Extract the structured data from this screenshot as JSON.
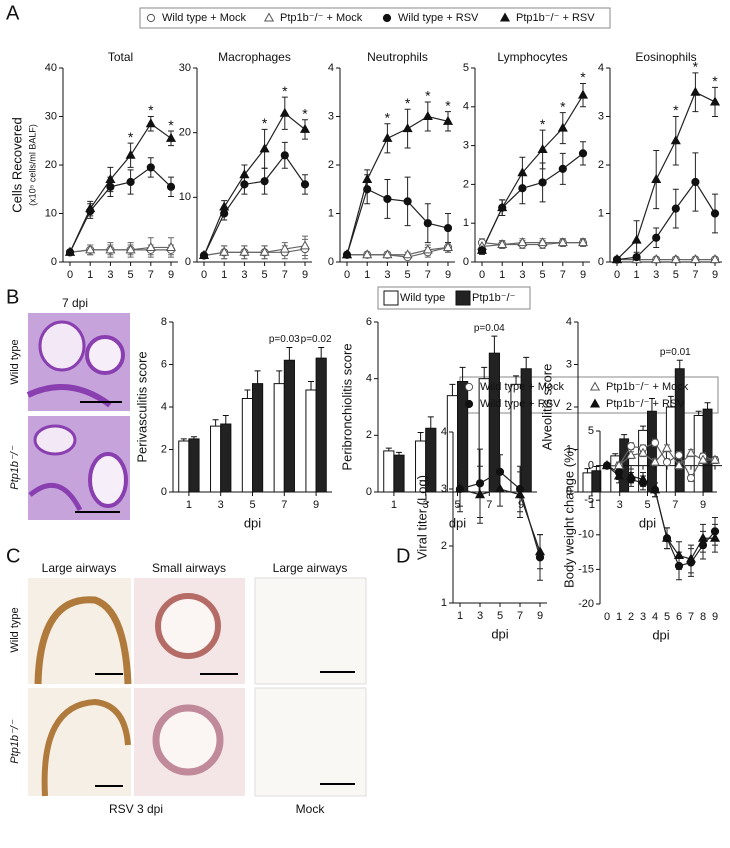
{
  "panel_labels": [
    "A",
    "B",
    "C",
    "D"
  ],
  "panel_a_xlabel": "dpi",
  "panel_b": {
    "image_title": "7 dpi",
    "rows": [
      "Wild type",
      "Ptp1b⁻/⁻"
    ]
  },
  "panel_c": {
    "columns": [
      "Large airways",
      "Small airways",
      "Large airways"
    ],
    "rows": [
      "Wild type",
      "Ptp1b⁻/⁻"
    ],
    "groups": [
      "RSV 3 dpi",
      "Mock"
    ]
  },
  "chart_data": [
    {
      "type": "line",
      "title": "Total",
      "ylabel": "Cells Recovered",
      "ylabel_sub": "(x10⁵ cells/ml BALF)",
      "categories": [
        "0",
        "1",
        "3",
        "5",
        "7",
        "9"
      ],
      "ylim": [
        0,
        40
      ],
      "yticks": [
        0,
        10,
        20,
        30,
        40
      ],
      "series": [
        {
          "name": "Wild type + Mock",
          "marker": "circle",
          "filled": false,
          "color": "#666",
          "values": [
            2,
            2.5,
            2.5,
            2.5,
            2.5,
            2.5
          ],
          "errors": [
            0.5,
            1,
            1,
            1,
            1,
            1
          ]
        },
        {
          "name": "Ptp1b⁻/⁻ + Mock",
          "marker": "triangle",
          "filled": false,
          "color": "#666",
          "values": [
            2,
            2.5,
            2.5,
            2.5,
            3,
            3
          ],
          "errors": [
            0.5,
            1,
            1.5,
            1.5,
            2,
            2
          ]
        },
        {
          "name": "Wild type + RSV",
          "marker": "circle",
          "filled": true,
          "color": "#222",
          "values": [
            2,
            10.5,
            15.5,
            16.5,
            19.5,
            15.5
          ],
          "errors": [
            0.5,
            1.5,
            2,
            2.5,
            2,
            2
          ]
        },
        {
          "name": "Ptp1b⁻/⁻ + RSV",
          "marker": "triangle",
          "filled": true,
          "color": "#222",
          "values": [
            2,
            11,
            17,
            22,
            28.5,
            25.5
          ],
          "errors": [
            0.5,
            1.5,
            2.5,
            2.5,
            1.5,
            1.5
          ]
        }
      ],
      "annotations": [
        {
          "category": "5",
          "text": "*"
        },
        {
          "category": "7",
          "text": "*"
        },
        {
          "category": "9",
          "text": "*"
        }
      ]
    },
    {
      "type": "line",
      "title": "Macrophages",
      "categories": [
        "0",
        "1",
        "3",
        "5",
        "7",
        "9"
      ],
      "ylim": [
        0,
        30
      ],
      "yticks": [
        0,
        10,
        20,
        30
      ],
      "series": [
        {
          "name": "Wild type + Mock",
          "marker": "circle",
          "filled": false,
          "color": "#666",
          "values": [
            1,
            1.5,
            1.5,
            1.5,
            1.5,
            2
          ],
          "errors": [
            0.3,
            1,
            1,
            1,
            1,
            1.5
          ]
        },
        {
          "name": "Ptp1b⁻/⁻ + Mock",
          "marker": "triangle",
          "filled": false,
          "color": "#666",
          "values": [
            1,
            1.5,
            1.5,
            1.5,
            2,
            2.5
          ],
          "errors": [
            0.3,
            1,
            1,
            1,
            1,
            1.5
          ]
        },
        {
          "name": "Wild type + RSV",
          "marker": "circle",
          "filled": true,
          "color": "#222",
          "values": [
            1,
            7.5,
            12,
            12.5,
            16.5,
            12
          ],
          "errors": [
            0.3,
            1,
            1.5,
            2,
            2,
            1.5
          ]
        },
        {
          "name": "Ptp1b⁻/⁻ + RSV",
          "marker": "triangle",
          "filled": true,
          "color": "#222",
          "values": [
            1,
            8.5,
            13.5,
            17.5,
            23,
            20.5
          ],
          "errors": [
            0.3,
            1,
            1.5,
            3,
            2.5,
            1.5
          ]
        }
      ],
      "annotations": [
        {
          "category": "5",
          "text": "*"
        },
        {
          "category": "7",
          "text": "*"
        },
        {
          "category": "9",
          "text": "*"
        }
      ]
    },
    {
      "type": "line",
      "title": "Neutrophils",
      "categories": [
        "0",
        "1",
        "3",
        "5",
        "7",
        "9"
      ],
      "ylim": [
        0,
        4
      ],
      "yticks": [
        0,
        1,
        2,
        3,
        4
      ],
      "series": [
        {
          "name": "Wild type + Mock",
          "marker": "circle",
          "filled": false,
          "color": "#666",
          "values": [
            0.15,
            0.15,
            0.15,
            0.1,
            0.2,
            0.3
          ],
          "errors": [
            0.05,
            0.05,
            0.05,
            0.05,
            0.1,
            0.1
          ]
        },
        {
          "name": "Ptp1b⁻/⁻ + Mock",
          "marker": "triangle",
          "filled": false,
          "color": "#666",
          "values": [
            0.15,
            0.15,
            0.15,
            0.15,
            0.25,
            0.3
          ],
          "errors": [
            0.05,
            0.05,
            0.05,
            0.05,
            0.1,
            0.1
          ]
        },
        {
          "name": "Wild type + RSV",
          "marker": "circle",
          "filled": true,
          "color": "#222",
          "values": [
            0.15,
            1.5,
            1.3,
            1.25,
            0.8,
            0.7
          ],
          "errors": [
            0.05,
            0.3,
            0.4,
            0.5,
            0.4,
            0.3
          ]
        },
        {
          "name": "Ptp1b⁻/⁻ + RSV",
          "marker": "triangle",
          "filled": true,
          "color": "#222",
          "values": [
            0.15,
            1.7,
            2.55,
            2.75,
            3.0,
            2.9
          ],
          "errors": [
            0.05,
            0.2,
            0.3,
            0.4,
            0.3,
            0.2
          ]
        }
      ],
      "annotations": [
        {
          "category": "3",
          "text": "*"
        },
        {
          "category": "5",
          "text": "*"
        },
        {
          "category": "7",
          "text": "*"
        },
        {
          "category": "9",
          "text": "*"
        }
      ]
    },
    {
      "type": "line",
      "title": "Lymphocytes",
      "categories": [
        "0",
        "1",
        "3",
        "5",
        "7",
        "9"
      ],
      "ylim": [
        0,
        5
      ],
      "yticks": [
        0,
        1,
        2,
        3,
        4,
        5
      ],
      "series": [
        {
          "name": "Wild type + Mock",
          "marker": "circle",
          "filled": false,
          "color": "#666",
          "values": [
            0.5,
            0.45,
            0.45,
            0.45,
            0.5,
            0.5
          ],
          "errors": [
            0.1,
            0.1,
            0.1,
            0.1,
            0.1,
            0.1
          ]
        },
        {
          "name": "Ptp1b⁻/⁻ + Mock",
          "marker": "triangle",
          "filled": false,
          "color": "#666",
          "values": [
            0.4,
            0.45,
            0.5,
            0.5,
            0.5,
            0.5
          ],
          "errors": [
            0.1,
            0.1,
            0.1,
            0.1,
            0.1,
            0.1
          ]
        },
        {
          "name": "Wild type + RSV",
          "marker": "circle",
          "filled": true,
          "color": "#222",
          "values": [
            0.3,
            1.4,
            1.9,
            2.05,
            2.4,
            2.8
          ],
          "errors": [
            0.1,
            0.2,
            0.4,
            0.5,
            0.4,
            0.3
          ]
        },
        {
          "name": "Ptp1b⁻/⁻ + RSV",
          "marker": "triangle",
          "filled": true,
          "color": "#222",
          "values": [
            0.3,
            1.4,
            2.3,
            2.9,
            3.45,
            4.3
          ],
          "errors": [
            0.1,
            0.2,
            0.4,
            0.5,
            0.4,
            0.3
          ]
        }
      ],
      "annotations": [
        {
          "category": "5",
          "text": "*"
        },
        {
          "category": "7",
          "text": "*"
        },
        {
          "category": "9",
          "text": "*"
        }
      ]
    },
    {
      "type": "line",
      "title": "Eosinophils",
      "categories": [
        "0",
        "1",
        "3",
        "5",
        "7",
        "9"
      ],
      "ylim": [
        0,
        4
      ],
      "yticks": [
        0,
        1,
        2,
        3,
        4
      ],
      "series": [
        {
          "name": "Wild type + Mock",
          "marker": "circle",
          "filled": false,
          "color": "#666",
          "values": [
            0.05,
            0.05,
            0.05,
            0.05,
            0.05,
            0.05
          ],
          "errors": [
            0.05,
            0.05,
            0.05,
            0.05,
            0.05,
            0.05
          ]
        },
        {
          "name": "Ptp1b⁻/⁻ + Mock",
          "marker": "triangle",
          "filled": false,
          "color": "#666",
          "values": [
            0.05,
            0.05,
            0.05,
            0.05,
            0.05,
            0.05
          ],
          "errors": [
            0.05,
            0.05,
            0.05,
            0.05,
            0.05,
            0.05
          ]
        },
        {
          "name": "Wild type + RSV",
          "marker": "circle",
          "filled": true,
          "color": "#222",
          "values": [
            0.05,
            0.1,
            0.5,
            1.1,
            1.65,
            1.0
          ],
          "errors": [
            0.05,
            0.1,
            0.2,
            0.4,
            0.6,
            0.4
          ]
        },
        {
          "name": "Ptp1b⁻/⁻ + RSV",
          "marker": "triangle",
          "filled": true,
          "color": "#222",
          "values": [
            0.05,
            0.45,
            1.7,
            2.5,
            3.5,
            3.3
          ],
          "errors": [
            0.05,
            0.4,
            0.6,
            0.5,
            0.4,
            0.3
          ]
        }
      ],
      "annotations": [
        {
          "category": "5",
          "text": "*"
        },
        {
          "category": "7",
          "text": "*"
        },
        {
          "category": "9",
          "text": "*"
        }
      ]
    },
    {
      "type": "bar",
      "ylabel": "Perivasculitis score",
      "xlabel": "dpi",
      "categories": [
        "1",
        "3",
        "5",
        "7",
        "9"
      ],
      "ylim": [
        0,
        8
      ],
      "yticks": [
        0,
        2,
        4,
        6,
        8
      ],
      "series": [
        {
          "name": "Wild type",
          "color": "#ffffff",
          "values": [
            2.4,
            3.1,
            4.4,
            5.1,
            4.8
          ],
          "errors": [
            0.1,
            0.3,
            0.4,
            0.6,
            0.4
          ]
        },
        {
          "name": "Ptp1b⁻/⁻",
          "color": "#222222",
          "values": [
            2.5,
            3.2,
            5.1,
            6.2,
            6.3
          ],
          "errors": [
            0.1,
            0.4,
            0.6,
            0.6,
            0.5
          ]
        }
      ],
      "annotations": [
        {
          "category": "7",
          "text": "p=0.03"
        },
        {
          "category": "9",
          "text": "p=0.02"
        }
      ]
    },
    {
      "type": "bar",
      "ylabel": "Peribronchiolitis score",
      "xlabel": "dpi",
      "categories": [
        "1",
        "3",
        "5",
        "7",
        "9"
      ],
      "ylim": [
        0,
        6
      ],
      "yticks": [
        0,
        2,
        4,
        6
      ],
      "series": [
        {
          "name": "Wild type",
          "color": "#ffffff",
          "values": [
            1.45,
            1.8,
            3.4,
            4.0,
            3.8
          ],
          "errors": [
            0.1,
            0.3,
            0.4,
            0.4,
            0.3
          ]
        },
        {
          "name": "Ptp1b⁻/⁻",
          "color": "#222222",
          "values": [
            1.3,
            2.25,
            3.9,
            4.9,
            4.35
          ],
          "errors": [
            0.1,
            0.4,
            0.5,
            0.6,
            0.4
          ]
        }
      ],
      "annotations": [
        {
          "category": "7",
          "text": "p=0.04"
        }
      ]
    },
    {
      "type": "bar",
      "ylabel": "Alveolitis score",
      "xlabel": "dpi",
      "categories": [
        "1",
        "3",
        "5",
        "7",
        "9"
      ],
      "ylim": [
        0,
        4
      ],
      "yticks": [
        0,
        1,
        2,
        3,
        4
      ],
      "series": [
        {
          "name": "Wild type",
          "color": "#ffffff",
          "values": [
            0.45,
            0.85,
            1.45,
            2.0,
            1.8
          ],
          "errors": [
            0.1,
            0.05,
            0.1,
            0.25,
            0.1
          ]
        },
        {
          "name": "Ptp1b⁻/⁻",
          "color": "#222222",
          "values": [
            0.5,
            1.25,
            1.9,
            2.9,
            1.95
          ],
          "errors": [
            0.1,
            0.1,
            0.3,
            0.2,
            0.15
          ]
        }
      ],
      "annotations": [
        {
          "category": "7",
          "text": "p=0.01"
        }
      ]
    },
    {
      "type": "line",
      "ylabel": "Viral titer (Log)",
      "xlabel": "dpi",
      "categories": [
        "1",
        "3",
        "5",
        "7",
        "9"
      ],
      "ylim": [
        1,
        4
      ],
      "yticks": [
        1,
        2,
        3,
        4
      ],
      "series": [
        {
          "name": "Wild type + RSV",
          "marker": "circle",
          "filled": true,
          "color": "#222",
          "values": [
            3.0,
            3.1,
            3.3,
            3.0,
            1.8
          ],
          "errors": [
            0.4,
            0.6,
            0.3,
            0.4,
            0.4
          ]
        },
        {
          "name": "Ptp1b⁻/⁻ + RSV",
          "marker": "triangle",
          "filled": true,
          "color": "#222",
          "values": [
            3.0,
            2.9,
            3.0,
            2.9,
            1.9
          ],
          "errors": [
            0.3,
            0.5,
            0.3,
            0.4,
            0.3
          ]
        }
      ]
    },
    {
      "type": "line",
      "ylabel": "Body weight change (%)",
      "xlabel": "dpi",
      "categories": [
        "0",
        "1",
        "2",
        "3",
        "4",
        "5",
        "6",
        "7",
        "8",
        "9"
      ],
      "ylim": [
        -20,
        5
      ],
      "yticks": [
        -20,
        -15,
        -10,
        -5,
        0,
        5
      ],
      "series": [
        {
          "name": "Wild type + Mock",
          "marker": "circle",
          "filled": false,
          "color": "#666",
          "values": [
            0,
            0,
            2.8,
            2.5,
            3.3,
            0.5,
            1.5,
            -1.8,
            1.3,
            0.8
          ],
          "errors": [
            0.3,
            0.5,
            0.5,
            0.5,
            0.5,
            0.5,
            0.5,
            0.5,
            0.5,
            0.5
          ]
        },
        {
          "name": "Ptp1b⁻/⁻ + Mock",
          "marker": "triangle",
          "filled": false,
          "color": "#666",
          "values": [
            0,
            0,
            1.5,
            1.8,
            0.5,
            2.5,
            0,
            1.8,
            0.8,
            0.8
          ],
          "errors": [
            0.3,
            0.5,
            0.5,
            0.5,
            0.5,
            0.5,
            0.5,
            0.5,
            0.5,
            0.5
          ]
        },
        {
          "name": "Wild type + RSV",
          "marker": "circle",
          "filled": true,
          "color": "#222",
          "values": [
            0,
            -1,
            -2,
            -2.5,
            -3.5,
            -10.5,
            -14.5,
            -14,
            -11.5,
            -9.5
          ],
          "errors": [
            0.3,
            1,
            1,
            1,
            1,
            1.5,
            2,
            2,
            2,
            2
          ]
        },
        {
          "name": "Ptp1b⁻/⁻ + RSV",
          "marker": "triangle",
          "filled": true,
          "color": "#222",
          "values": [
            0,
            -1.5,
            -1.5,
            -2,
            -3.5,
            -10.5,
            -13,
            -13.5,
            -10.5,
            -10.5
          ],
          "errors": [
            0.3,
            1,
            1,
            1,
            1,
            1.5,
            2,
            2,
            2,
            2
          ]
        }
      ]
    }
  ]
}
